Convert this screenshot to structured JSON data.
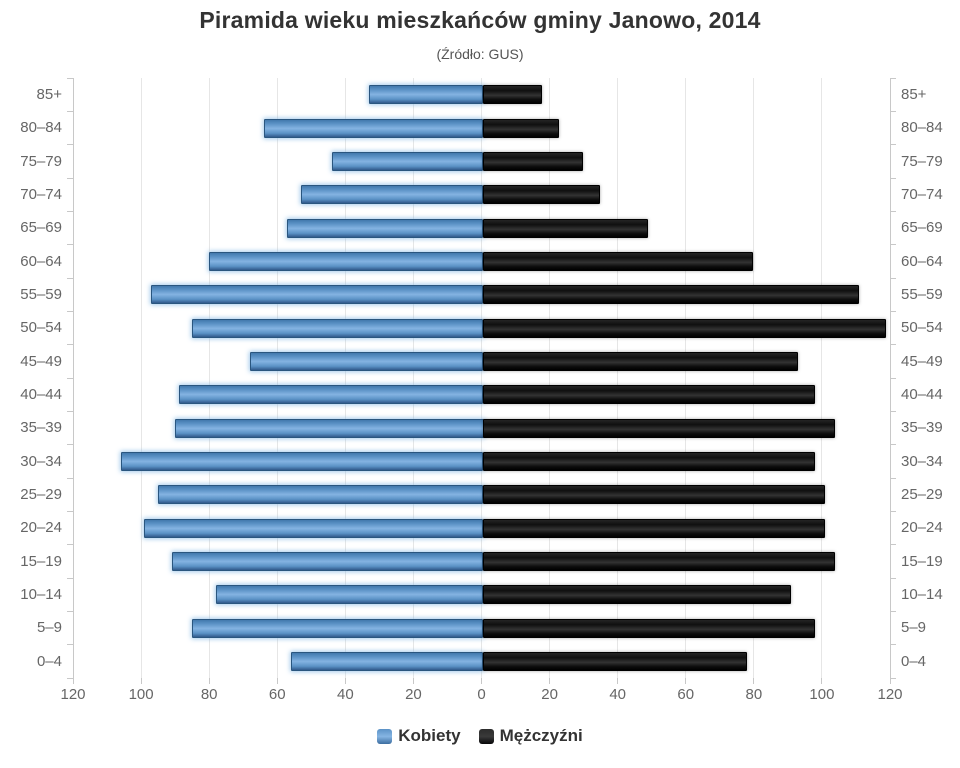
{
  "chart": {
    "title": "Piramida wieku mieszkańców gminy Janowo, 2014",
    "subtitle": "(Źródło: GUS)"
  },
  "legend": {
    "female_label": "Kobiety",
    "male_label": "Mężczyźni"
  },
  "chart_data": {
    "type": "bar",
    "variant": "population-pyramid",
    "title": "Piramida wieku mieszkańców gminy Janowo, 2014",
    "subtitle": "(Źródło: GUS)",
    "categories": [
      "85+",
      "80–84",
      "75–79",
      "70–74",
      "65–69",
      "60–64",
      "55–59",
      "50–54",
      "45–49",
      "40–44",
      "35–39",
      "30–34",
      "25–29",
      "20–24",
      "15–19",
      "10–14",
      "5–9",
      "0–4"
    ],
    "series": [
      {
        "name": "Kobiety",
        "side": "left",
        "color": "#4d82b4",
        "values": [
          33,
          64,
          44,
          53,
          57,
          80,
          97,
          85,
          68,
          89,
          90,
          106,
          95,
          99,
          91,
          78,
          85,
          56
        ]
      },
      {
        "name": "Mężczyźni",
        "side": "right",
        "color": "#17161b",
        "values": [
          17,
          22,
          29,
          34,
          48,
          79,
          110,
          118,
          92,
          97,
          103,
          97,
          100,
          100,
          103,
          90,
          97,
          77
        ]
      }
    ],
    "xlabel": "",
    "ylabel": "",
    "axis": {
      "xmax_each_side": 120,
      "tick_interval": 20,
      "tick_labels": [
        "120",
        "100",
        "80",
        "60",
        "40",
        "20",
        "0",
        "20",
        "40",
        "60",
        "80",
        "100",
        "120"
      ]
    },
    "grid": true,
    "legend_position": "bottom-center",
    "age_labels_shown_on": "both-sides"
  }
}
